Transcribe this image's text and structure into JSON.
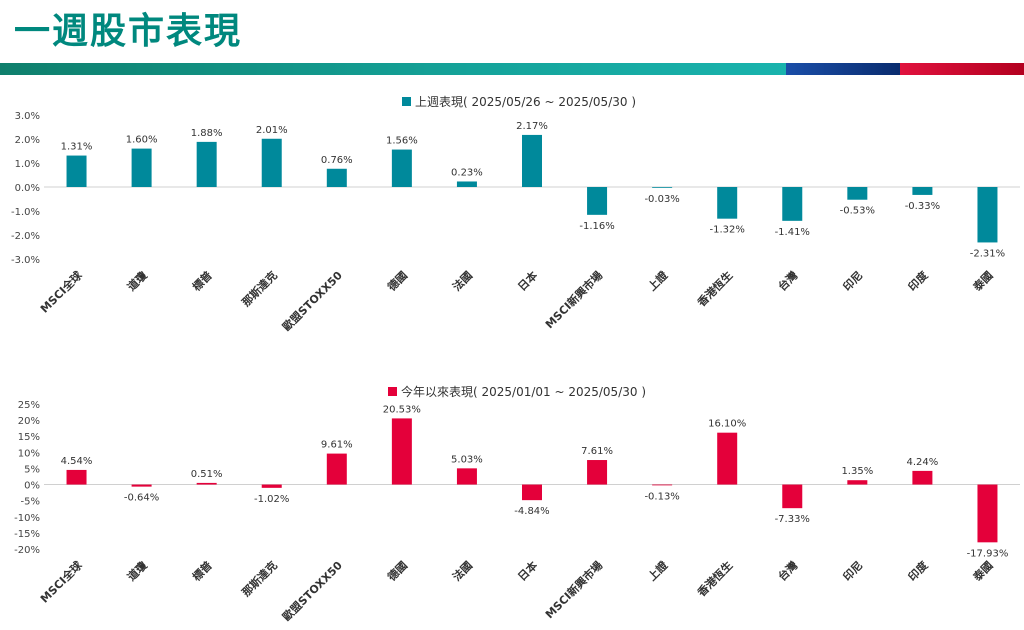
{
  "page": {
    "title": "一週股市表現",
    "colors": {
      "title": "#00887e",
      "bar_teal": "#00a19a",
      "bar_blue": "#0a3a8c",
      "bar_red": "#d3002b"
    }
  },
  "chart_data": [
    {
      "type": "bar",
      "title": "上週表現( 2025/05/26 ~ 2025/05/30 )",
      "categories": [
        "MSCI全球",
        "道瓊",
        "標普",
        "那斯達克",
        "歐盟STOXX50",
        "德國",
        "法國",
        "日本",
        "MSCI新興市場",
        "上證",
        "香港恆生",
        "台灣",
        "印尼",
        "印度",
        "泰國"
      ],
      "series": [
        {
          "name": "上週表現( 2025/05/26 ~ 2025/05/30 )",
          "color": "#00899b",
          "values": [
            1.31,
            1.6,
            1.88,
            2.01,
            0.76,
            1.56,
            0.23,
            2.17,
            -1.16,
            -0.03,
            -1.32,
            -1.41,
            -0.53,
            -0.33,
            -2.31
          ],
          "labels": [
            "1.31%",
            "1.60%",
            "1.88%",
            "2.01%",
            "0.76%",
            "1.56%",
            "0.23%",
            "2.17%",
            "-1.16%",
            "-0.03%",
            "-1.32%",
            "-1.41%",
            "-0.53%",
            "-0.33%",
            "-2.31%"
          ]
        }
      ],
      "ylim": [
        -3,
        3
      ],
      "yticks": [
        3,
        2,
        1,
        0,
        -1,
        -2,
        -3
      ],
      "ytick_labels": [
        "3.0%",
        "2.0%",
        "1.0%",
        "0.0%",
        "-1.0%",
        "-2.0%",
        "-3.0%"
      ],
      "grid": false,
      "legend": "top-center"
    },
    {
      "type": "bar",
      "title": "今年以來表現( 2025/01/01 ~ 2025/05/30 )",
      "categories": [
        "MSCI全球",
        "道瓊",
        "標普",
        "那斯達克",
        "歐盟STOXX50",
        "德國",
        "法國",
        "日本",
        "MSCI新興市場",
        "上證",
        "香港恆生",
        "台灣",
        "印尼",
        "印度",
        "泰國"
      ],
      "series": [
        {
          "name": "今年以來表現( 2025/01/01 ~ 2025/05/30 )",
          "color": "#e4003a",
          "values": [
            4.54,
            -0.64,
            0.51,
            -1.02,
            9.61,
            20.53,
            5.03,
            -4.84,
            7.61,
            -0.13,
            16.1,
            -7.33,
            1.35,
            4.24,
            -17.93
          ],
          "labels": [
            "4.54%",
            "-0.64%",
            "0.51%",
            "-1.02%",
            "9.61%",
            "20.53%",
            "5.03%",
            "-4.84%",
            "7.61%",
            "-0.13%",
            "16.10%",
            "-7.33%",
            "1.35%",
            "4.24%",
            "-17.93%"
          ]
        }
      ],
      "ylim": [
        -20,
        25
      ],
      "yticks": [
        25,
        20,
        15,
        10,
        5,
        0,
        -5,
        -10,
        -15,
        -20
      ],
      "ytick_labels": [
        "25%",
        "20%",
        "15%",
        "10%",
        "5%",
        "0%",
        "-5%",
        "-10%",
        "-15%",
        "-20%"
      ],
      "grid": false,
      "legend": "top-center"
    }
  ]
}
